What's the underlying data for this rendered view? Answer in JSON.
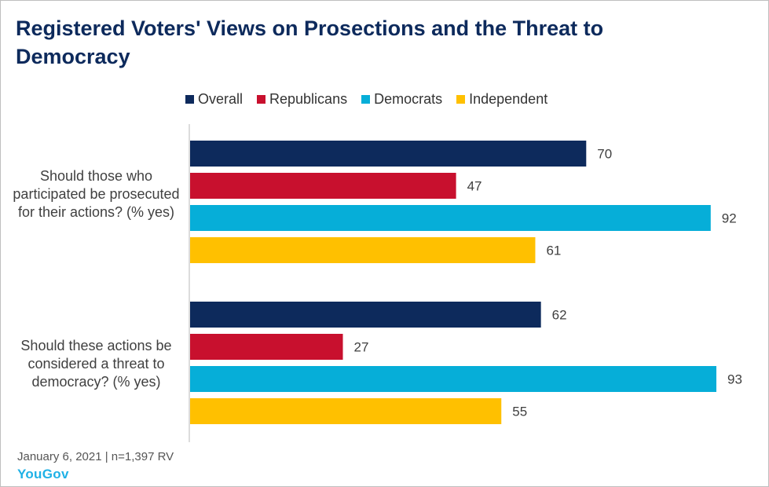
{
  "title": "Registered Voters' Views on Prosections and the Threat to Democracy",
  "footer": {
    "note": "January 6, 2021 | n=1,397 RV",
    "brand": "YouGov"
  },
  "chart_data": {
    "type": "bar",
    "orientation": "horizontal",
    "categories": [
      "Should those who participated be prosecuted for their actions? (% yes)",
      "Should these actions be considered a threat to democracy? (% yes)"
    ],
    "series": [
      {
        "name": "Overall",
        "color": "#0d2a5c",
        "values": [
          70,
          62
        ]
      },
      {
        "name": "Republicans",
        "color": "#c8102e",
        "values": [
          47,
          27
        ]
      },
      {
        "name": "Democrats",
        "color": "#06aed8",
        "values": [
          92,
          93
        ]
      },
      {
        "name": "Independent",
        "color": "#ffc000",
        "values": [
          61,
          55
        ]
      }
    ],
    "xlim": [
      0,
      93
    ],
    "legend_position": "top",
    "data_labels": true,
    "grid": false
  }
}
